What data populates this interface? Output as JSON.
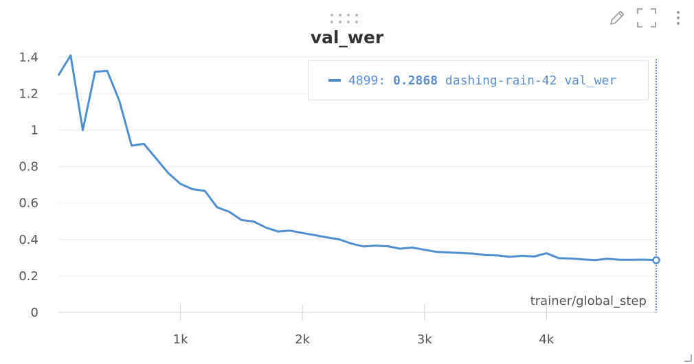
{
  "panel": {
    "title": "val_wer",
    "icons": [
      "drag-handle-icon",
      "pencil-icon",
      "fullscreen-icon",
      "more-vertical-icon",
      "resize-corner-icon"
    ]
  },
  "legend": {
    "step": "4899:",
    "value": "0.2868",
    "run": "dashing-rain-42",
    "metric": "val_wer",
    "color": "#4e8fd1"
  },
  "chart_data": {
    "type": "line",
    "title": "val_wer",
    "xlabel": "trainer/global_step",
    "ylabel": "",
    "xlim": [
      0,
      4899
    ],
    "ylim": [
      0,
      1.45
    ],
    "yticks": [
      0,
      0.2,
      0.4,
      0.6,
      0.8,
      1,
      1.2,
      1.4
    ],
    "ytick_labels": [
      "0",
      "0.2",
      "0.4",
      "0.6",
      "0.8",
      "1",
      "1.2",
      "1.4"
    ],
    "xticks": [
      1000,
      2000,
      3000,
      4000
    ],
    "xtick_labels": [
      "1k",
      "2k",
      "3k",
      "4k"
    ],
    "grid": true,
    "legend_position": "top-right",
    "series": [
      {
        "name": "dashing-rain-42 val_wer",
        "color": "#4e8fd1",
        "x": [
          0,
          100,
          200,
          300,
          400,
          500,
          600,
          700,
          800,
          900,
          1000,
          1100,
          1200,
          1300,
          1400,
          1500,
          1600,
          1700,
          1800,
          1900,
          2000,
          2100,
          2200,
          2300,
          2400,
          2500,
          2600,
          2700,
          2800,
          2900,
          3000,
          3100,
          3200,
          3300,
          3400,
          3500,
          3600,
          3700,
          3800,
          3900,
          4000,
          4100,
          4200,
          4300,
          4400,
          4500,
          4600,
          4700,
          4800,
          4899
        ],
        "y": [
          1.3,
          1.41,
          1.0,
          1.32,
          1.325,
          1.16,
          0.915,
          0.925,
          0.845,
          0.765,
          0.705,
          0.676,
          0.667,
          0.577,
          0.552,
          0.507,
          0.499,
          0.466,
          0.444,
          0.449,
          0.436,
          0.424,
          0.412,
          0.401,
          0.378,
          0.362,
          0.367,
          0.363,
          0.35,
          0.356,
          0.344,
          0.332,
          0.329,
          0.326,
          0.323,
          0.315,
          0.313,
          0.305,
          0.311,
          0.307,
          0.325,
          0.298,
          0.296,
          0.291,
          0.287,
          0.295,
          0.289,
          0.289,
          0.29,
          0.2868
        ]
      }
    ]
  }
}
